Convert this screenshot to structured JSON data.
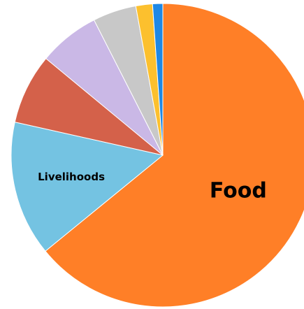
{
  "chart_data": {
    "type": "pie",
    "start_angle_deg": 0,
    "direction": "clockwise",
    "legend": "none",
    "slices": [
      {
        "label": "Food",
        "value": 65.0,
        "color": "#ff7f27",
        "show_label": true
      },
      {
        "label": "Livelihoods",
        "value": 14.6,
        "color": "#74c3e2",
        "show_label": true
      },
      {
        "label": "",
        "value": 7.6,
        "color": "#d4614a",
        "show_label": false
      },
      {
        "label": "",
        "value": 6.6,
        "color": "#cab8e6",
        "show_label": false
      },
      {
        "label": "",
        "value": 4.7,
        "color": "#c8c8c8",
        "show_label": false
      },
      {
        "label": "",
        "value": 1.8,
        "color": "#fcc02e",
        "show_label": false
      },
      {
        "label": "",
        "value": 1.1,
        "color": "#1e88e5",
        "show_label": false
      }
    ]
  }
}
